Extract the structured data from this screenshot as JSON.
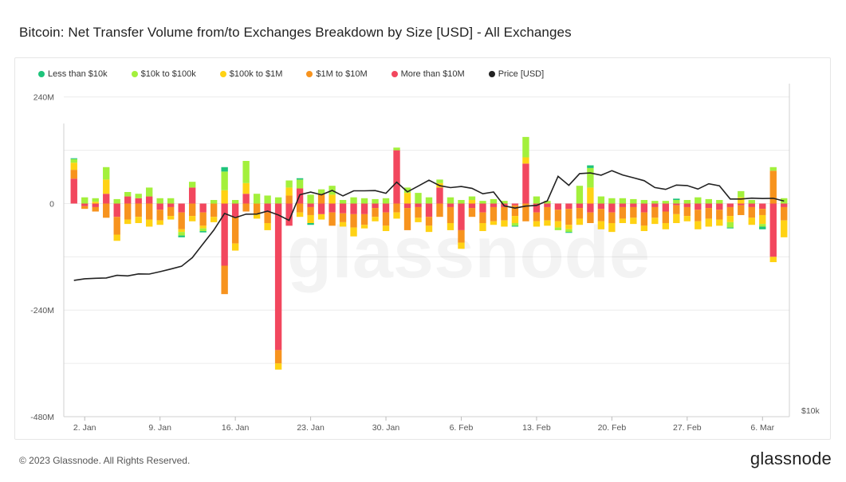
{
  "page": {
    "title": "Bitcoin: Net Transfer Volume from/to Exchanges Breakdown by Size [USD] - All Exchanges",
    "copyright": "© 2023 Glassnode. All Rights Reserved.",
    "brand": "glassnode",
    "watermark": "glassnode"
  },
  "chart_data": {
    "type": "bar",
    "stacked": true,
    "title": "Bitcoin: Net Transfer Volume from/to Exchanges Breakdown by Size [USD] - All Exchanges",
    "x_tick_labels": [
      "2. Jan",
      "9. Jan",
      "16. Jan",
      "23. Jan",
      "30. Jan",
      "6. Feb",
      "13. Feb",
      "20. Feb",
      "27. Feb",
      "6. Mar"
    ],
    "x_tick_day_index": [
      1,
      8,
      15,
      22,
      29,
      36,
      43,
      50,
      57,
      64
    ],
    "y_left": {
      "ticks": [
        "240M",
        "0",
        "-240M",
        "-480M"
      ],
      "tick_values": [
        240,
        0,
        -240,
        -480
      ],
      "range": [
        -480,
        270
      ],
      "unit": "M USD"
    },
    "y_right": {
      "ticks": [
        "$10k"
      ],
      "tick_values": [
        10000
      ],
      "scale": "log",
      "range": [
        10000,
        30000
      ]
    },
    "legend_position": "top-left",
    "grid": true,
    "days": [
      "Jan 1",
      "Jan 2",
      "Jan 3",
      "Jan 4",
      "Jan 5",
      "Jan 6",
      "Jan 7",
      "Jan 8",
      "Jan 9",
      "Jan 10",
      "Jan 11",
      "Jan 12",
      "Jan 13",
      "Jan 14",
      "Jan 15",
      "Jan 16",
      "Jan 17",
      "Jan 18",
      "Jan 19",
      "Jan 20",
      "Jan 21",
      "Jan 22",
      "Jan 23",
      "Jan 24",
      "Jan 25",
      "Jan 26",
      "Jan 27",
      "Jan 28",
      "Jan 29",
      "Jan 30",
      "Jan 31",
      "Feb 1",
      "Feb 2",
      "Feb 3",
      "Feb 4",
      "Feb 5",
      "Feb 6",
      "Feb 7",
      "Feb 8",
      "Feb 9",
      "Feb 10",
      "Feb 11",
      "Feb 12",
      "Feb 13",
      "Feb 14",
      "Feb 15",
      "Feb 16",
      "Feb 17",
      "Feb 18",
      "Feb 19",
      "Feb 20",
      "Feb 21",
      "Feb 22",
      "Feb 23",
      "Feb 24",
      "Feb 25",
      "Feb 26",
      "Feb 27",
      "Feb 28",
      "Mar 1",
      "Mar 2",
      "Mar 3",
      "Mar 4",
      "Mar 5",
      "Mar 6",
      "Mar 7",
      "Mar 8"
    ],
    "series": [
      {
        "name": "Less than $10k",
        "color": "#1ec47b",
        "values": [
          2,
          0,
          0,
          0,
          0,
          0,
          0,
          0,
          0,
          0,
          -4,
          0,
          -3,
          0,
          10,
          0,
          0,
          0,
          0,
          0,
          0,
          3,
          -4,
          0,
          0,
          0,
          0,
          0,
          0,
          0,
          0,
          0,
          0,
          0,
          0,
          0,
          0,
          0,
          0,
          0,
          0,
          -2,
          0,
          0,
          0,
          0,
          -2,
          0,
          6,
          0,
          0,
          0,
          0,
          0,
          0,
          0,
          3,
          0,
          0,
          0,
          0,
          -2,
          0,
          0,
          -6,
          0,
          0
        ]
      },
      {
        "name": "$10k to $100k",
        "color": "#a3f03c",
        "values": [
          8,
          14,
          8,
          28,
          10,
          10,
          10,
          20,
          12,
          12,
          -8,
          13,
          -6,
          8,
          42,
          8,
          50,
          22,
          18,
          14,
          16,
          20,
          20,
          10,
          20,
          8,
          14,
          12,
          10,
          12,
          6,
          12,
          24,
          14,
          8,
          14,
          8,
          8,
          6,
          10,
          6,
          -6,
          46,
          16,
          6,
          -6,
          -6,
          40,
          44,
          16,
          12,
          12,
          10,
          8,
          6,
          6,
          8,
          8,
          14,
          10,
          8,
          -12,
          14,
          8,
          -6,
          8,
          12
        ]
      },
      {
        "name": "$100k to $1M",
        "color": "#ffd214",
        "values": [
          16,
          0,
          4,
          32,
          -14,
          -10,
          -14,
          -16,
          -10,
          -8,
          -6,
          -12,
          -6,
          -12,
          30,
          -16,
          24,
          -10,
          -16,
          -14,
          18,
          -10,
          -18,
          -12,
          20,
          -10,
          -20,
          -8,
          -10,
          -12,
          -14,
          24,
          -10,
          -14,
          10,
          -16,
          -14,
          8,
          -18,
          -8,
          -14,
          -16,
          14,
          -12,
          -12,
          -14,
          -10,
          -14,
          36,
          -18,
          -20,
          -10,
          -14,
          -12,
          -14,
          -14,
          -20,
          -12,
          -18,
          -18,
          -14,
          -14,
          14,
          -16,
          -20,
          -12,
          -38
        ]
      },
      {
        "name": "$1M to $10M",
        "color": "#f7931e",
        "values": [
          20,
          -6,
          -10,
          -32,
          -40,
          -36,
          -30,
          -36,
          -24,
          -20,
          -38,
          -28,
          -30,
          -30,
          -64,
          -60,
          -18,
          -24,
          -24,
          -30,
          18,
          -20,
          -18,
          22,
          -30,
          -20,
          -30,
          -24,
          -20,
          -30,
          -20,
          -50,
          -24,
          -20,
          -30,
          -36,
          -28,
          -20,
          -24,
          -32,
          -30,
          -24,
          -40,
          -20,
          -30,
          -26,
          -36,
          -24,
          -24,
          -28,
          -24,
          -26,
          -24,
          -30,
          -24,
          -26,
          -20,
          -20,
          -26,
          -24,
          -22,
          -20,
          -22,
          -24,
          -14,
          74,
          -30
        ]
      },
      {
        "name": "More than $10M",
        "color": "#f2475e",
        "values": [
          56,
          -6,
          -8,
          22,
          -30,
          16,
          12,
          16,
          -14,
          -8,
          -20,
          36,
          -20,
          0,
          -140,
          -30,
          22,
          -24,
          -20,
          -20,
          -50,
          34,
          -8,
          -24,
          -20,
          -22,
          -24,
          -24,
          -10,
          -20,
          120,
          -10,
          -8,
          -30,
          36,
          -8,
          -60,
          -10,
          -20,
          -8,
          -8,
          -4,
          90,
          -20,
          -8,
          -14,
          -12,
          -10,
          -20,
          -12,
          -20,
          -8,
          -8,
          -20,
          -8,
          -18,
          -4,
          -8,
          -14,
          -10,
          -14,
          -8,
          -4,
          -8,
          -12,
          -120,
          -8
        ]
      }
    ],
    "extra_neg_overrides": {
      "Jan 20": -330,
      "Jan 18": 0
    },
    "price": {
      "name": "Price [USD]",
      "color": "#222222",
      "axis": "right",
      "values": [
        16550,
        16650,
        16680,
        16700,
        16860,
        16830,
        16950,
        16940,
        17090,
        17260,
        17440,
        18000,
        18950,
        19930,
        21200,
        20870,
        21140,
        21150,
        21380,
        21080,
        20660,
        22720,
        22940,
        22710,
        23080,
        22620,
        23050,
        23050,
        23070,
        22840,
        23800,
        22960,
        23450,
        23970,
        23490,
        23320,
        23420,
        23260,
        22800,
        22950,
        21800,
        21620,
        21780,
        21840,
        22210,
        24320,
        23520,
        24560,
        24620,
        24420,
        24830,
        24440,
        24190,
        23930,
        23330,
        23170,
        23540,
        23500,
        23200,
        23650,
        23480,
        22360,
        22360,
        22430,
        22400,
        22420,
        22190
      ]
    }
  }
}
